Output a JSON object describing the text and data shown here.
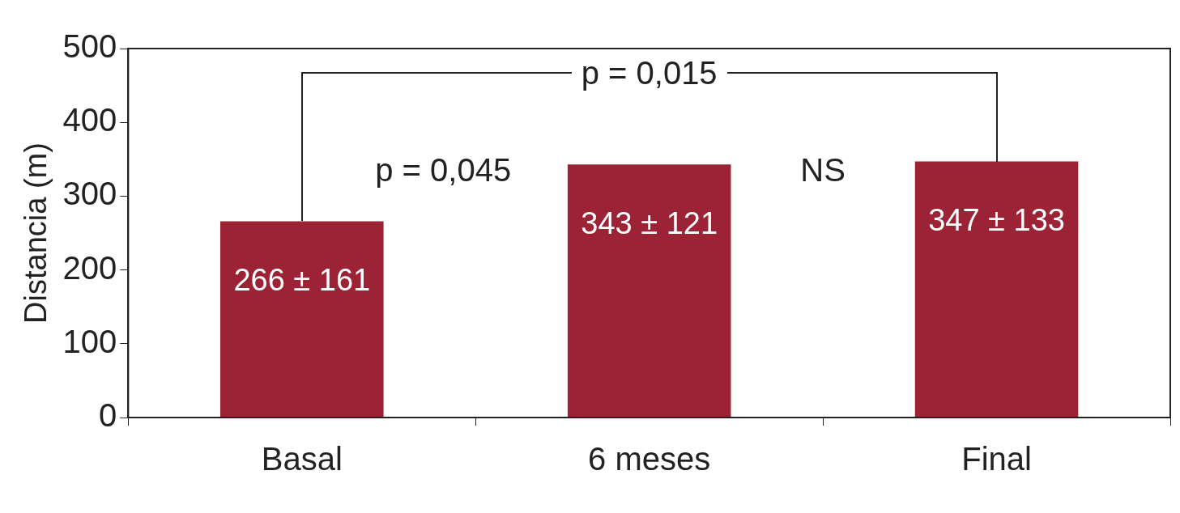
{
  "chart_data": {
    "type": "bar",
    "ylabel": "Distancia (m)",
    "categories": [
      "Basal",
      "6 meses",
      "Final"
    ],
    "values": [
      266,
      343,
      347
    ],
    "value_labels": [
      "266 ± 161",
      "343 ± 121",
      "347 ± 133"
    ],
    "color": "#9b2335",
    "ylim": [
      0,
      500
    ],
    "yticks": [
      0,
      100,
      200,
      300,
      400,
      500
    ],
    "grid": false,
    "legend": false,
    "annotations": [
      "p = 0,015",
      "p = 0,045",
      "NS"
    ]
  }
}
